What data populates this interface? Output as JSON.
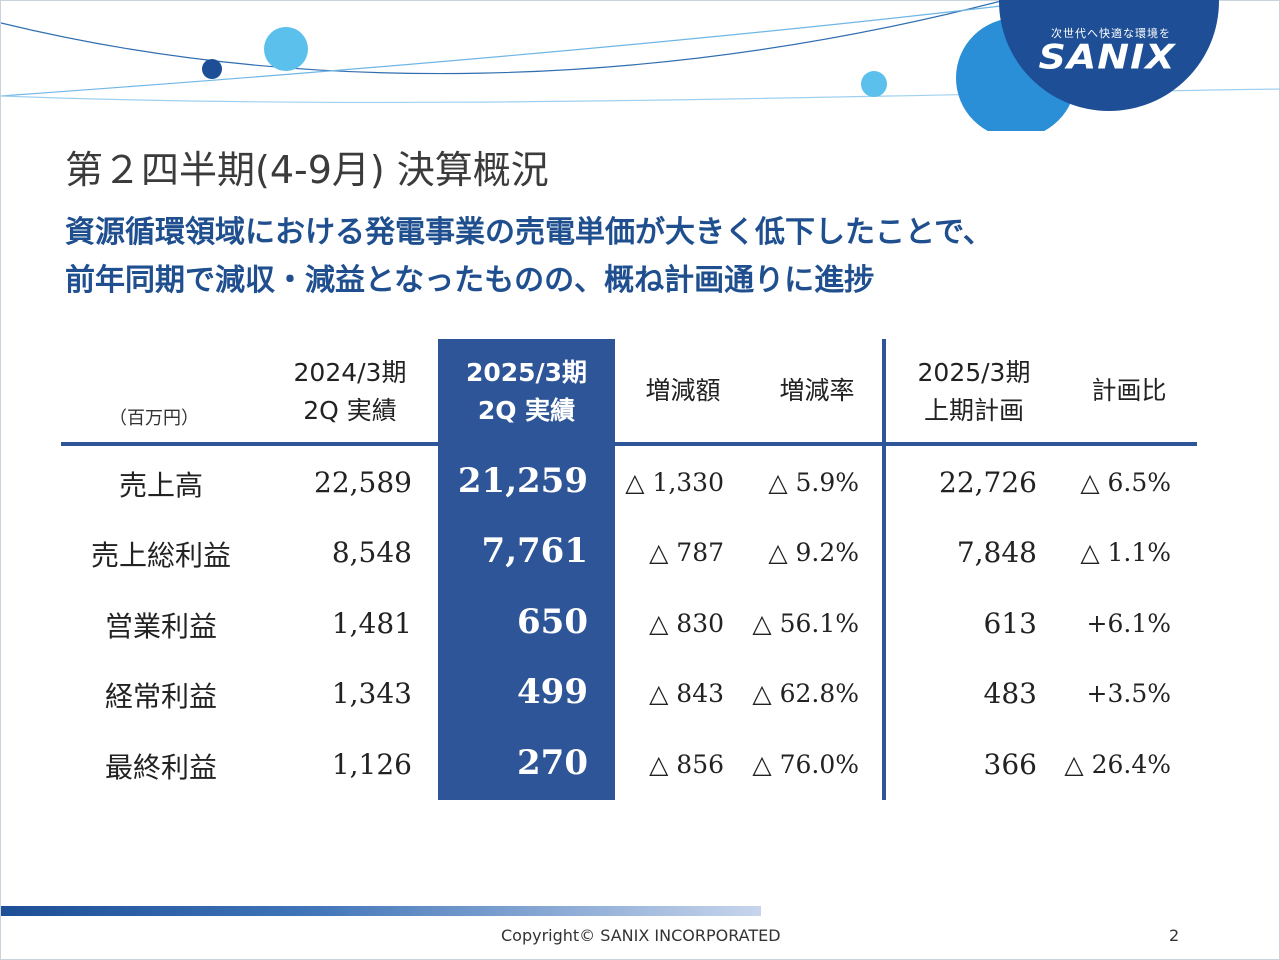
{
  "brand": {
    "tagline": "次世代へ快適な環境を",
    "name": "SANIX",
    "dark_blue": "#1d4e96",
    "light_blue": "#5bc0eb"
  },
  "title": "第２四半期(4-9月) 決算概況",
  "headline": {
    "line1": "資源循環領域における発電事業の売電単価が大きく低下したことで、",
    "line2": "前年同期で減収・減益となったものの、概ね計画通りに進捗"
  },
  "table": {
    "unit": "（百万円）",
    "columns": [
      {
        "line1": "2024/3期",
        "line2": "2Q 実績"
      },
      {
        "line1": "2025/3期",
        "line2": "2Q 実績"
      },
      {
        "line1": "増減額",
        "line2": ""
      },
      {
        "line1": "増減率",
        "line2": ""
      },
      {
        "line1": "2025/3期",
        "line2": "上期計画"
      },
      {
        "line1": "計画比",
        "line2": ""
      }
    ],
    "rows": [
      {
        "label": "売上高",
        "values": [
          "22,589",
          "21,259",
          "△ 1,330",
          "△ 5.9%",
          "22,726",
          "△ 6.5%"
        ]
      },
      {
        "label": "売上総利益",
        "values": [
          "8,548",
          "7,761",
          "△ 787",
          "△ 9.2%",
          "7,848",
          "△ 1.1%"
        ]
      },
      {
        "label": "営業利益",
        "values": [
          "1,481",
          "650",
          "△ 830",
          "△ 56.1%",
          "613",
          "+6.1%"
        ]
      },
      {
        "label": "経常利益",
        "values": [
          "1,343",
          "499",
          "△ 843",
          "△ 62.8%",
          "483",
          "+3.5%"
        ]
      },
      {
        "label": "最終利益",
        "values": [
          "1,126",
          "270",
          "△ 856",
          "△ 76.0%",
          "366",
          "△ 26.4%"
        ]
      }
    ],
    "highlight_color": "#2e5597"
  },
  "footer": {
    "copyright": "Copyright©  SANIX INCORPORATED",
    "page": "2"
  }
}
